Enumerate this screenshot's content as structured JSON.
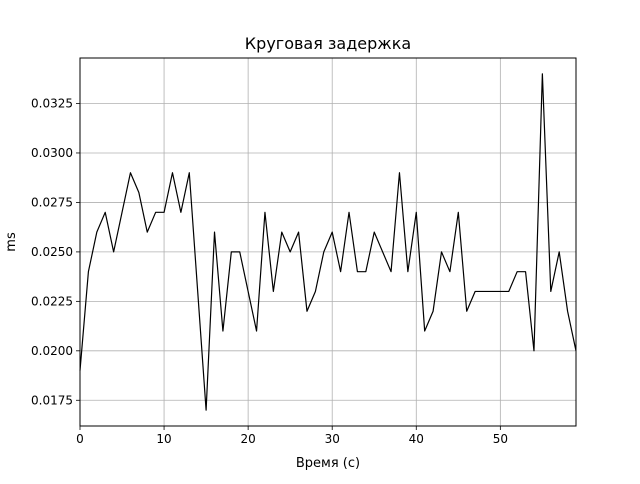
{
  "chart_data": {
    "type": "line",
    "title": "Круговая задержка",
    "xlabel": "Время (с)",
    "ylabel": "ms",
    "xlim": [
      0,
      59
    ],
    "ylim": [
      0.0162,
      0.0348
    ],
    "grid": true,
    "legend": "none",
    "x_ticks": [
      0,
      10,
      20,
      30,
      40,
      50
    ],
    "x_tick_labels": [
      "0",
      "10",
      "20",
      "30",
      "40",
      "50"
    ],
    "y_ticks": [
      0.0175,
      0.02,
      0.0225,
      0.025,
      0.0275,
      0.03,
      0.0325
    ],
    "y_tick_labels": [
      "0.0175",
      "0.0200",
      "0.0225",
      "0.0250",
      "0.0275",
      "0.0300",
      "0.0325"
    ],
    "series": [
      {
        "color": "#000000",
        "x": [
          0,
          1,
          2,
          3,
          4,
          5,
          6,
          7,
          8,
          9,
          10,
          11,
          12,
          13,
          14,
          15,
          16,
          17,
          18,
          19,
          20,
          21,
          22,
          23,
          24,
          25,
          26,
          27,
          28,
          29,
          30,
          31,
          32,
          33,
          34,
          35,
          36,
          37,
          38,
          39,
          40,
          41,
          42,
          43,
          44,
          45,
          46,
          47,
          48,
          49,
          50,
          51,
          52,
          53,
          54,
          55,
          56,
          57,
          58,
          59
        ],
        "values": [
          0.019,
          0.024,
          0.026,
          0.027,
          0.025,
          0.027,
          0.029,
          0.028,
          0.026,
          0.027,
          0.027,
          0.029,
          0.027,
          0.029,
          0.023,
          0.017,
          0.026,
          0.021,
          0.025,
          0.025,
          0.023,
          0.021,
          0.027,
          0.023,
          0.026,
          0.025,
          0.026,
          0.022,
          0.023,
          0.025,
          0.026,
          0.024,
          0.027,
          0.024,
          0.024,
          0.026,
          0.025,
          0.024,
          0.029,
          0.024,
          0.027,
          0.021,
          0.022,
          0.025,
          0.024,
          0.027,
          0.022,
          0.023,
          0.023,
          0.023,
          0.023,
          0.023,
          0.024,
          0.024,
          0.02,
          0.034,
          0.023,
          0.025,
          0.022,
          0.02
        ]
      }
    ]
  }
}
